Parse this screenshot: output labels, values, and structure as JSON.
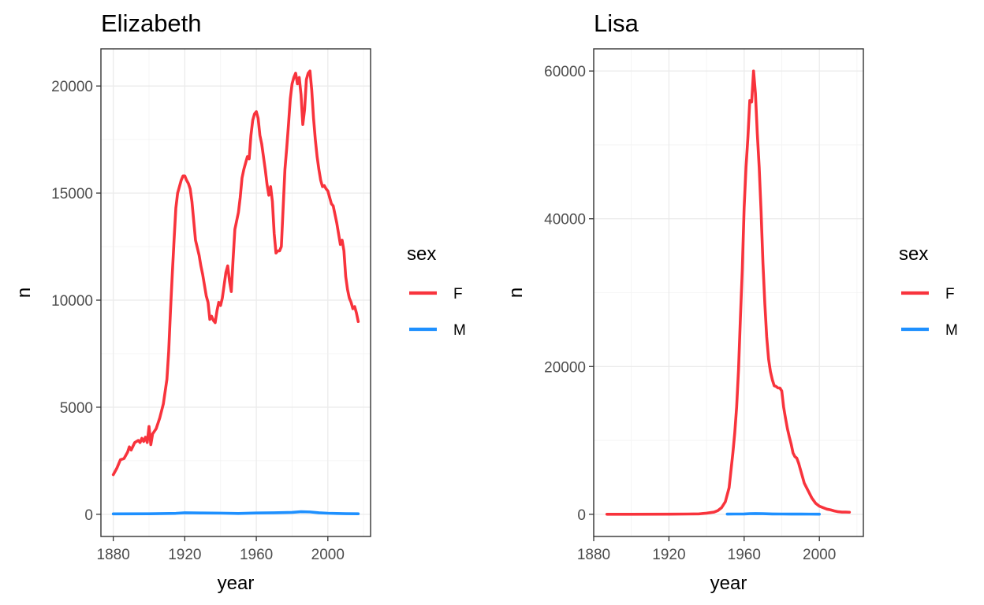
{
  "chart_data": [
    {
      "type": "line",
      "title": "Elizabeth",
      "xlabel": "year",
      "ylabel": "n",
      "xlim": [
        1880,
        2017
      ],
      "ylim": [
        0,
        20700
      ],
      "x_ticks": [
        1880,
        1920,
        1960,
        2000
      ],
      "y_ticks": [
        0,
        5000,
        10000,
        15000,
        20000
      ],
      "grid": true,
      "legend": {
        "title": "sex",
        "position": "right",
        "entries": [
          "F",
          "M"
        ]
      },
      "series": [
        {
          "name": "F",
          "color": "#F8333C",
          "points": [
            [
              1880,
              1850
            ],
            [
              1882,
              2150
            ],
            [
              1884,
              2550
            ],
            [
              1886,
              2600
            ],
            [
              1888,
              2900
            ],
            [
              1889,
              3150
            ],
            [
              1890,
              3000
            ],
            [
              1892,
              3350
            ],
            [
              1894,
              3450
            ],
            [
              1895,
              3350
            ],
            [
              1896,
              3550
            ],
            [
              1897,
              3400
            ],
            [
              1898,
              3600
            ],
            [
              1899,
              3350
            ],
            [
              1900,
              4100
            ],
            [
              1901,
              3250
            ],
            [
              1902,
              3750
            ],
            [
              1904,
              4000
            ],
            [
              1906,
              4500
            ],
            [
              1908,
              5150
            ],
            [
              1910,
              6300
            ],
            [
              1911,
              7600
            ],
            [
              1912,
              9500
            ],
            [
              1913,
              11200
            ],
            [
              1914,
              12800
            ],
            [
              1915,
              14300
            ],
            [
              1916,
              15000
            ],
            [
              1917,
              15300
            ],
            [
              1918,
              15600
            ],
            [
              1919,
              15800
            ],
            [
              1920,
              15800
            ],
            [
              1921,
              15600
            ],
            [
              1922,
              15450
            ],
            [
              1923,
              15200
            ],
            [
              1924,
              14600
            ],
            [
              1925,
              13700
            ],
            [
              1926,
              12800
            ],
            [
              1928,
              12100
            ],
            [
              1929,
              11600
            ],
            [
              1930,
              11200
            ],
            [
              1931,
              10700
            ],
            [
              1932,
              10200
            ],
            [
              1933,
              9900
            ],
            [
              1934,
              9100
            ],
            [
              1935,
              9250
            ],
            [
              1936,
              9050
            ],
            [
              1937,
              8950
            ],
            [
              1938,
              9500
            ],
            [
              1939,
              9900
            ],
            [
              1940,
              9750
            ],
            [
              1941,
              10100
            ],
            [
              1942,
              10700
            ],
            [
              1943,
              11300
            ],
            [
              1944,
              11600
            ],
            [
              1945,
              10900
            ],
            [
              1946,
              10400
            ],
            [
              1947,
              11900
            ],
            [
              1948,
              13300
            ],
            [
              1949,
              13700
            ],
            [
              1950,
              14100
            ],
            [
              1951,
              14800
            ],
            [
              1952,
              15700
            ],
            [
              1953,
              16100
            ],
            [
              1954,
              16400
            ],
            [
              1955,
              16700
            ],
            [
              1956,
              16600
            ],
            [
              1957,
              17700
            ],
            [
              1958,
              18400
            ],
            [
              1959,
              18700
            ],
            [
              1960,
              18800
            ],
            [
              1961,
              18500
            ],
            [
              1962,
              17700
            ],
            [
              1963,
              17300
            ],
            [
              1964,
              16700
            ],
            [
              1965,
              16100
            ],
            [
              1966,
              15400
            ],
            [
              1967,
              14900
            ],
            [
              1968,
              15300
            ],
            [
              1969,
              14600
            ],
            [
              1970,
              13100
            ],
            [
              1971,
              12200
            ],
            [
              1972,
              12300
            ],
            [
              1973,
              12300
            ],
            [
              1974,
              12500
            ],
            [
              1975,
              14300
            ],
            [
              1976,
              16100
            ],
            [
              1977,
              17100
            ],
            [
              1978,
              18200
            ],
            [
              1979,
              19400
            ],
            [
              1980,
              20100
            ],
            [
              1981,
              20400
            ],
            [
              1982,
              20600
            ],
            [
              1983,
              20100
            ],
            [
              1984,
              20400
            ],
            [
              1985,
              19600
            ],
            [
              1986,
              18200
            ],
            [
              1987,
              18900
            ],
            [
              1988,
              20300
            ],
            [
              1989,
              20600
            ],
            [
              1990,
              20700
            ],
            [
              1991,
              19800
            ],
            [
              1992,
              18500
            ],
            [
              1993,
              17500
            ],
            [
              1994,
              16700
            ],
            [
              1995,
              16100
            ],
            [
              1996,
              15600
            ],
            [
              1997,
              15300
            ],
            [
              1998,
              15350
            ],
            [
              1999,
              15200
            ],
            [
              2000,
              15100
            ],
            [
              2001,
              14800
            ],
            [
              2002,
              14500
            ],
            [
              2003,
              14400
            ],
            [
              2004,
              14000
            ],
            [
              2005,
              13600
            ],
            [
              2006,
              13100
            ],
            [
              2007,
              12600
            ],
            [
              2008,
              12800
            ],
            [
              2009,
              12300
            ],
            [
              2010,
              11100
            ],
            [
              2011,
              10500
            ],
            [
              2012,
              10100
            ],
            [
              2013,
              9900
            ],
            [
              2014,
              9600
            ],
            [
              2015,
              9700
            ],
            [
              2016,
              9400
            ],
            [
              2017,
              9000
            ]
          ]
        },
        {
          "name": "M",
          "color": "#1E90FF",
          "points": [
            [
              1880,
              20
            ],
            [
              1900,
              25
            ],
            [
              1915,
              45
            ],
            [
              1920,
              70
            ],
            [
              1930,
              60
            ],
            [
              1940,
              55
            ],
            [
              1950,
              40
            ],
            [
              1960,
              60
            ],
            [
              1970,
              70
            ],
            [
              1980,
              90
            ],
            [
              1985,
              120
            ],
            [
              1990,
              110
            ],
            [
              1995,
              70
            ],
            [
              2000,
              50
            ],
            [
              2005,
              40
            ],
            [
              2010,
              30
            ],
            [
              2017,
              25
            ]
          ]
        }
      ]
    },
    {
      "type": "line",
      "title": "Lisa",
      "xlabel": "year",
      "ylabel": "n",
      "xlim": [
        1880,
        2017
      ],
      "ylim": [
        0,
        60000
      ],
      "x_ticks": [
        1880,
        1920,
        1960,
        2000
      ],
      "y_ticks": [
        0,
        20000,
        40000,
        60000
      ],
      "grid": true,
      "legend": {
        "title": "sex",
        "position": "right",
        "entries": [
          "F",
          "M"
        ]
      },
      "series": [
        {
          "name": "F",
          "color": "#F8333C",
          "points": [
            [
              1887,
              8
            ],
            [
              1900,
              10
            ],
            [
              1920,
              20
            ],
            [
              1930,
              40
            ],
            [
              1936,
              60
            ],
            [
              1940,
              150
            ],
            [
              1944,
              300
            ],
            [
              1946,
              500
            ],
            [
              1948,
              900
            ],
            [
              1950,
              1700
            ],
            [
              1952,
              3600
            ],
            [
              1954,
              8300
            ],
            [
              1955,
              11000
            ],
            [
              1956,
              14500
            ],
            [
              1957,
              19500
            ],
            [
              1958,
              26500
            ],
            [
              1959,
              33000
            ],
            [
              1960,
              41500
            ],
            [
              1961,
              47000
            ],
            [
              1962,
              51000
            ],
            [
              1963,
              56000
            ],
            [
              1964,
              55800
            ],
            [
              1965,
              60000
            ],
            [
              1966,
              57000
            ],
            [
              1967,
              51500
            ],
            [
              1968,
              47000
            ],
            [
              1969,
              41000
            ],
            [
              1970,
              34000
            ],
            [
              1971,
              28500
            ],
            [
              1972,
              24000
            ],
            [
              1973,
              21000
            ],
            [
              1974,
              19300
            ],
            [
              1975,
              18200
            ],
            [
              1976,
              17400
            ],
            [
              1977,
              17300
            ],
            [
              1978,
              17100
            ],
            [
              1979,
              17100
            ],
            [
              1980,
              16700
            ],
            [
              1981,
              14500
            ],
            [
              1982,
              13000
            ],
            [
              1983,
              11600
            ],
            [
              1984,
              10500
            ],
            [
              1985,
              9500
            ],
            [
              1986,
              8300
            ],
            [
              1987,
              7800
            ],
            [
              1988,
              7600
            ],
            [
              1989,
              6900
            ],
            [
              1990,
              6000
            ],
            [
              1991,
              5100
            ],
            [
              1992,
              4200
            ],
            [
              1994,
              3200
            ],
            [
              1996,
              2200
            ],
            [
              1998,
              1500
            ],
            [
              2000,
              1100
            ],
            [
              2002,
              900
            ],
            [
              2004,
              700
            ],
            [
              2006,
              600
            ],
            [
              2008,
              450
            ],
            [
              2010,
              350
            ],
            [
              2012,
              300
            ],
            [
              2014,
              300
            ],
            [
              2016,
              280
            ]
          ]
        },
        {
          "name": "M",
          "color": "#1E90FF",
          "points": [
            [
              1951,
              30
            ],
            [
              1955,
              40
            ],
            [
              1960,
              50
            ],
            [
              1963,
              80
            ],
            [
              1966,
              100
            ],
            [
              1970,
              80
            ],
            [
              1975,
              50
            ],
            [
              1980,
              40
            ],
            [
              1985,
              35
            ],
            [
              1990,
              30
            ],
            [
              1995,
              25
            ],
            [
              2000,
              20
            ]
          ]
        }
      ]
    }
  ]
}
